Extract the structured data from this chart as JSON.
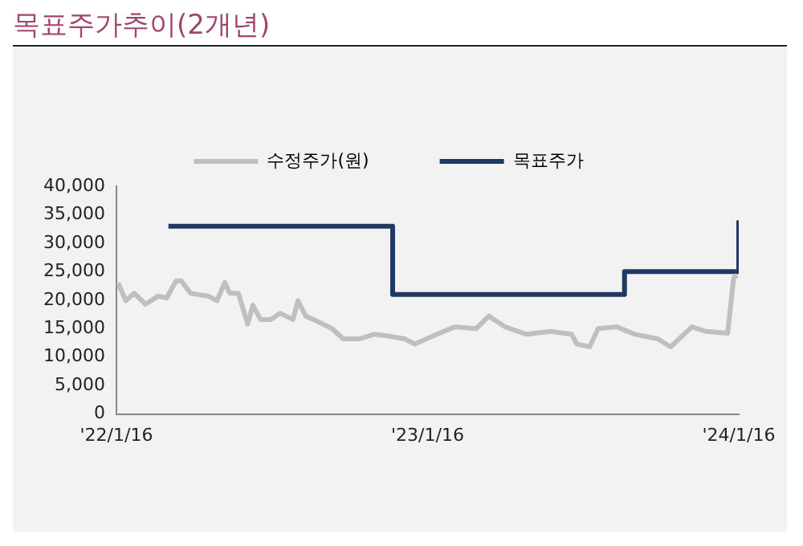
{
  "chart_data": {
    "type": "line",
    "title": "목표주가추이(2개년)",
    "series": [
      {
        "name": "수정주가(원)",
        "color": "#bfbfbf",
        "x": [
          "2022-01-18",
          "2022-01-27",
          "2022-02-06",
          "2022-02-19",
          "2022-03-06",
          "2022-03-16",
          "2022-03-27",
          "2022-04-02",
          "2022-04-13",
          "2022-05-04",
          "2022-05-14",
          "2022-05-23",
          "2022-05-29",
          "2022-06-08",
          "2022-06-19",
          "2022-06-25",
          "2022-07-04",
          "2022-07-16",
          "2022-07-27",
          "2022-08-11",
          "2022-08-17",
          "2022-08-26",
          "2022-09-07",
          "2022-09-26",
          "2022-10-09",
          "2022-10-28",
          "2022-11-14",
          "2022-12-01",
          "2022-12-20",
          "2023-01-01",
          "2023-01-27",
          "2023-02-17",
          "2023-03-14",
          "2023-03-29",
          "2023-04-17",
          "2023-05-12",
          "2023-06-09",
          "2023-07-04",
          "2023-07-10",
          "2023-07-25",
          "2023-08-04",
          "2023-08-26",
          "2023-09-16",
          "2023-10-13",
          "2023-10-28",
          "2023-11-22",
          "2023-12-09",
          "2024-01-03",
          "2024-01-10",
          "2024-01-14"
        ],
        "values": [
          23000,
          19900,
          21200,
          19300,
          20700,
          20400,
          23400,
          23400,
          21200,
          20700,
          19900,
          23100,
          21200,
          21200,
          15800,
          19100,
          16600,
          16600,
          17700,
          16600,
          19900,
          17200,
          16400,
          15000,
          13200,
          13200,
          14000,
          13700,
          13200,
          12300,
          14000,
          15300,
          15000,
          17200,
          15300,
          14000,
          14500,
          14000,
          12300,
          11800,
          15000,
          15300,
          14000,
          13200,
          11800,
          15300,
          14500,
          14200,
          23900,
          24400
        ]
      },
      {
        "name": "목표주가",
        "color": "#1f3864",
        "type": "step",
        "x": [
          "2022-03-18",
          "2022-12-06",
          "2023-09-04",
          "2024-01-16"
        ],
        "values": [
          33000,
          21000,
          25000,
          34000
        ]
      }
    ],
    "xlim": [
      "2022-01-16",
      "2024-01-16"
    ],
    "xticks": [
      {
        "value": "2022-01-16",
        "label": "'22/1/16"
      },
      {
        "value": "2023-01-16",
        "label": "'23/1/16"
      },
      {
        "value": "2024-01-16",
        "label": "'24/1/16"
      }
    ],
    "ylim": [
      0,
      40000
    ],
    "yticks": [
      0,
      {
        "value": 5000,
        "label": "5,000"
      },
      {
        "value": 10000,
        "label": "10,000"
      },
      {
        "value": 15000,
        "label": "15,000"
      },
      {
        "value": 20000,
        "label": "20,000"
      },
      {
        "value": 25000,
        "label": "25,000"
      },
      {
        "value": 30000,
        "label": "30,000"
      },
      {
        "value": 35000,
        "label": "35,000"
      },
      {
        "value": 40000,
        "label": "40,000"
      }
    ],
    "legend": "top",
    "grid": false
  }
}
